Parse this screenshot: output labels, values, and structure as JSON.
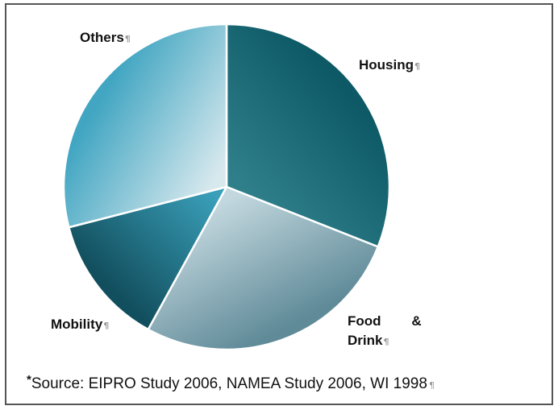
{
  "chart_data": {
    "type": "pie",
    "title": "",
    "slices": [
      {
        "label": "Housing",
        "value": 31,
        "color_dark": "#0d5a66",
        "color_light": "#2f7f8b",
        "pilcrow": "¶"
      },
      {
        "label": "Food & Drink",
        "value": 27,
        "color_dark": "#5f8a98",
        "color_light": "#c2d7de",
        "pilcrow": "¶"
      },
      {
        "label": "Mobility",
        "value": 13,
        "color_dark": "#124f5e",
        "color_light": "#3aa0ba",
        "pilcrow": "¶"
      },
      {
        "label": "Others",
        "value": 29,
        "color_dark": "#42a6c2",
        "color_light": "#d8e9ee",
        "pilcrow": "¶"
      }
    ],
    "label_lines": {
      "Housing": [
        "Housing"
      ],
      "Food & Drink": [
        "Food        &",
        "Drink"
      ],
      "Mobility": [
        "Mobility"
      ],
      "Others": [
        "Others"
      ]
    },
    "start_angle_deg": 0,
    "direction": "clockwise",
    "legend": "none",
    "slice_border_color": "#ffffff"
  },
  "footnote": {
    "asterisk": "*",
    "text": "Source: EIPRO Study 2006, NAMEA Study 2006, WI 1998",
    "pilcrow": "¶"
  }
}
